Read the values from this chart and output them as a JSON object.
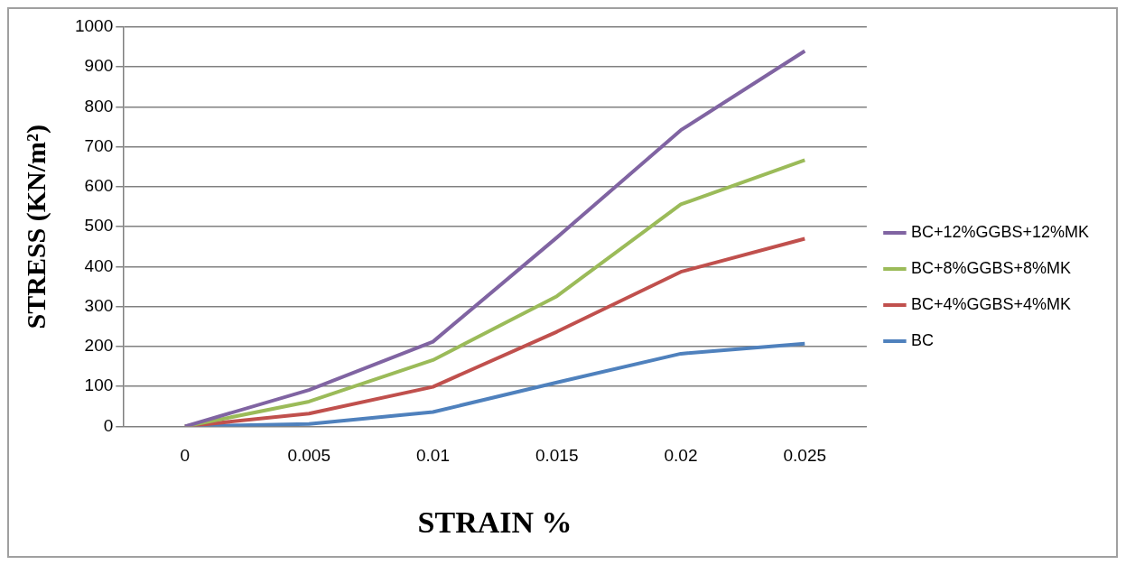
{
  "chart_data": {
    "type": "line",
    "xlabel": "STRAIN %",
    "ylabel": "STRESS (KN/m²)",
    "categories": [
      "0",
      "0.005",
      "0.01",
      "0.015",
      "0.02",
      "0.025"
    ],
    "series": [
      {
        "name": "BC+12%GGBS+12%MK",
        "color": "#8064a2",
        "values": [
          0,
          91,
          212,
          473,
          742,
          940
        ]
      },
      {
        "name": "BC+8%GGBS+8%MK",
        "color": "#9bbb59",
        "values": [
          0,
          62,
          166,
          326,
          556,
          667
        ]
      },
      {
        "name": "BC+4%GGBS+4%MK",
        "color": "#c0504d",
        "values": [
          0,
          32,
          99,
          237,
          387,
          470
        ]
      },
      {
        "name": "BC",
        "color": "#4f81bd",
        "values": [
          0,
          6,
          36,
          110,
          182,
          207
        ]
      }
    ],
    "ylim": [
      0,
      1000
    ],
    "yticks": [
      0,
      100,
      200,
      300,
      400,
      500,
      600,
      700,
      800,
      900,
      1000
    ],
    "grid": "y",
    "legend": "right",
    "marker": "none",
    "line_style": "solid"
  }
}
